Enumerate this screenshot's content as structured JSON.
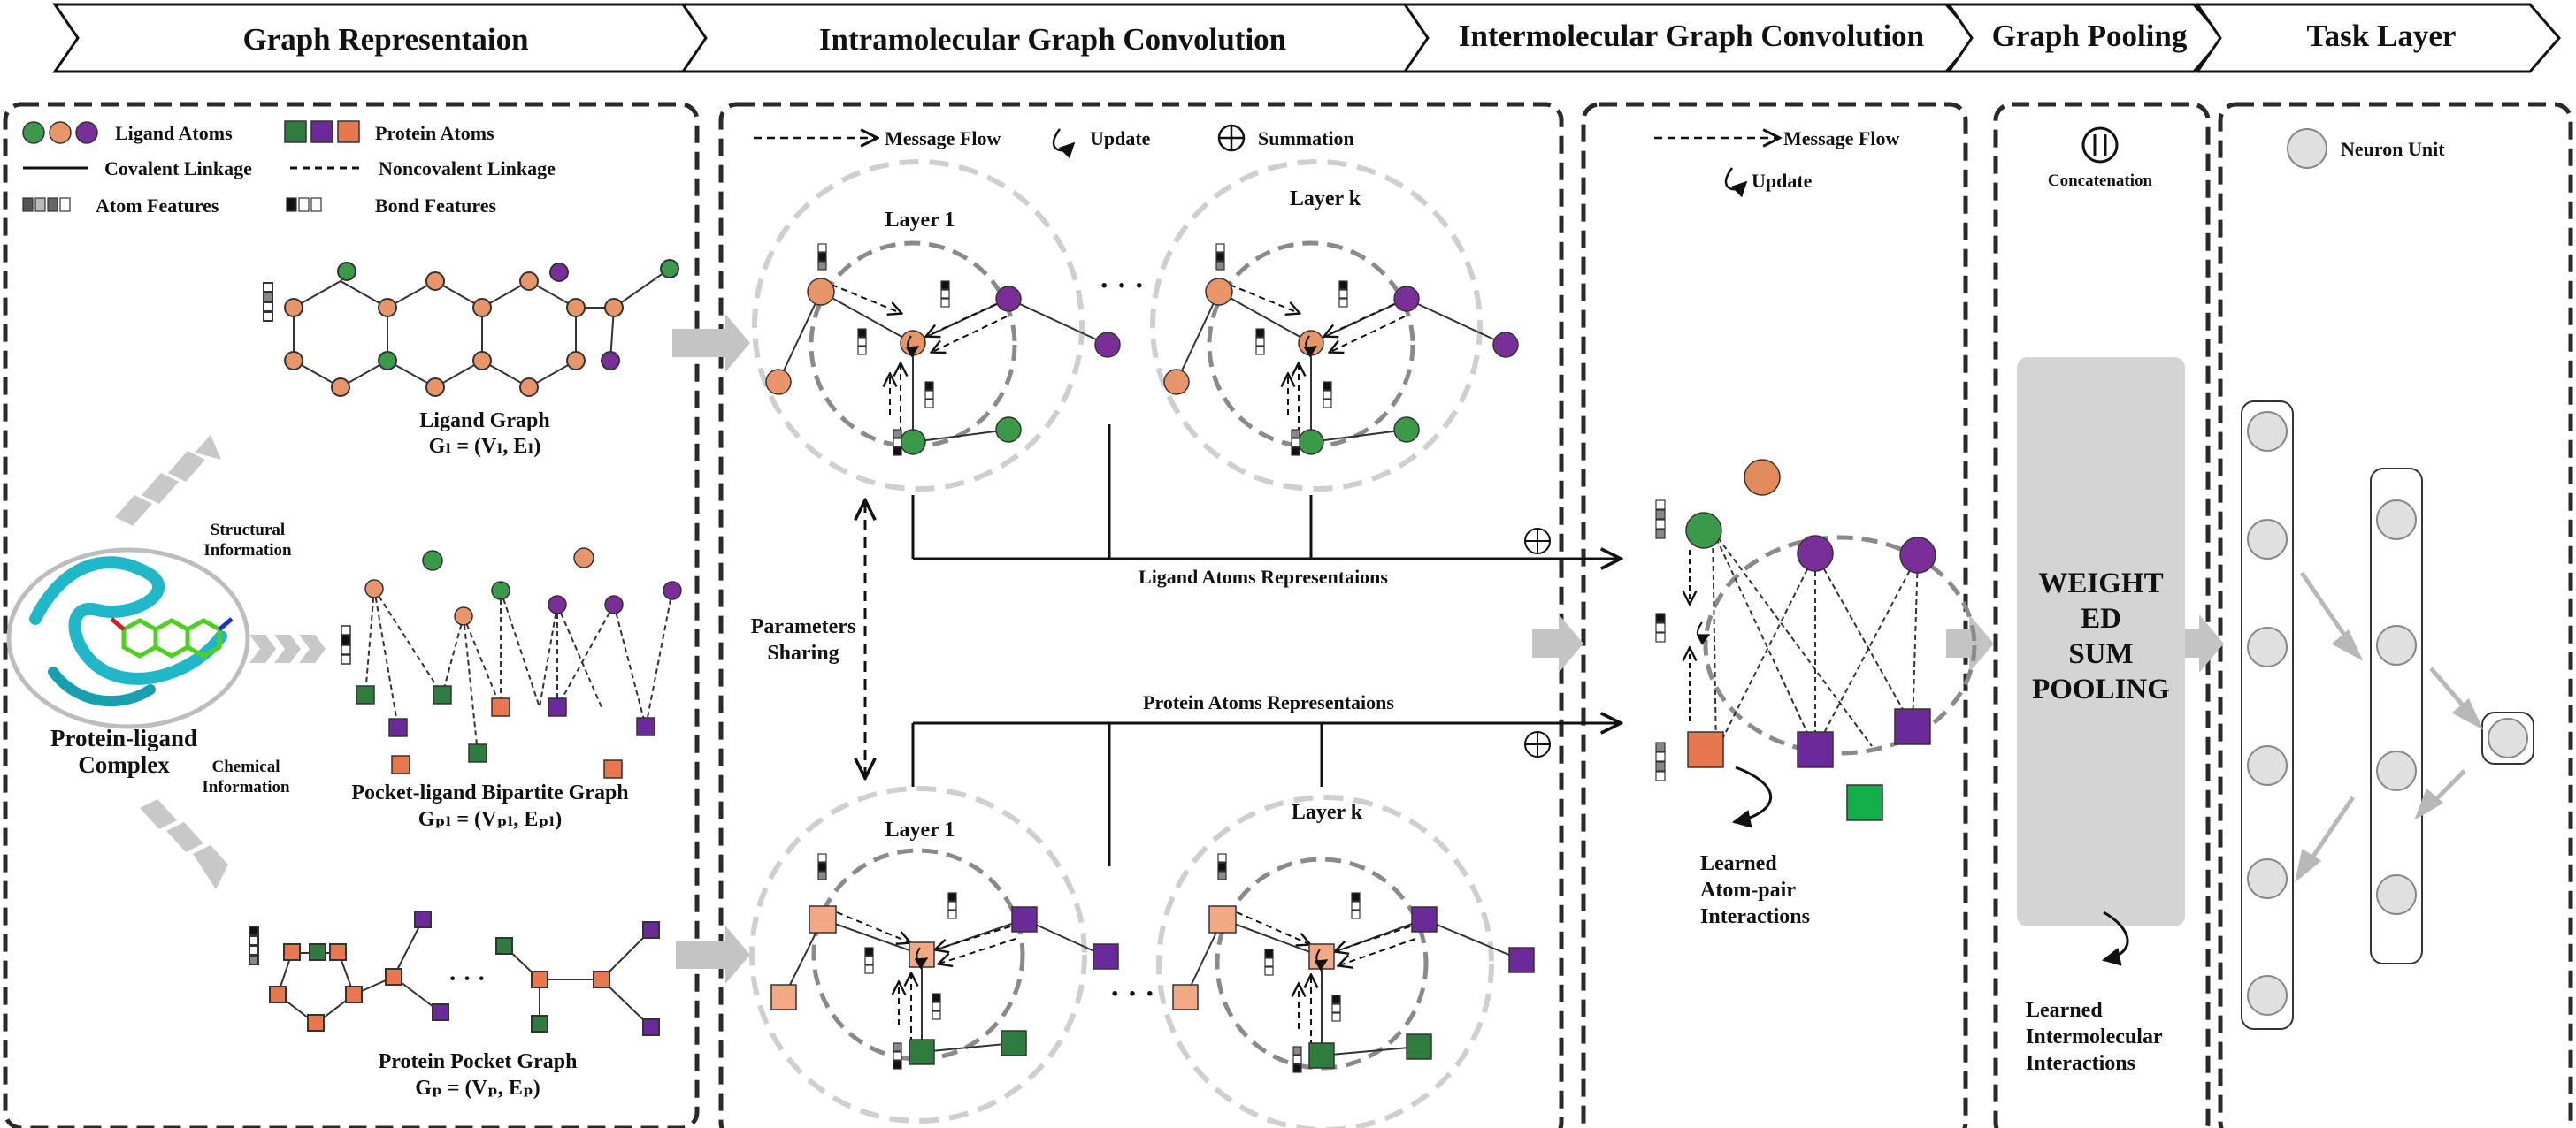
{
  "stages": [
    {
      "label": "Graph Representaion"
    },
    {
      "label": "Intramolecular Graph Convolution"
    },
    {
      "label": "Intermolecular Graph Convolution"
    },
    {
      "label": "Graph Pooling"
    },
    {
      "label": "Task Layer"
    }
  ],
  "legend": {
    "ligand_atoms": "Ligand Atoms",
    "protein_atoms": "Protein Atoms",
    "covalent": "Covalent Linkage",
    "noncovalent": "Noncovalent Linkage",
    "atom_features": "Atom Features",
    "bond_features": "Bond Features",
    "message_flow": "Message  Flow",
    "update": "Update",
    "summation": "Summation",
    "concatenation": "Concatenation",
    "neuron_unit": "Neuron Unit"
  },
  "graphs": {
    "ligand_title": "Ligand Graph",
    "ligand_formula": "Gₗ = (Vₗ, Eₗ)",
    "bipartite_title": "Pocket-ligand Bipartite Graph",
    "bipartite_formula": "Gₚₗ = (Vₚₗ, Eₚₗ)",
    "pocket_title": "Protein Pocket Graph",
    "pocket_formula": "Gₚ = (Vₚ, Eₚ)",
    "complex_line1": "Protein-ligand",
    "complex_line2": "Complex",
    "structural_line1": "Structural",
    "structural_line2": "Information",
    "chemical_line1": "Chemical",
    "chemical_line2": "Information",
    "ellipsis": "· · ·"
  },
  "convolution": {
    "layer1": "Layer 1",
    "layerk": "Layer k",
    "params_line1": "Parameters",
    "params_line2": "Sharing",
    "ligand_repr": "Ligand Atoms Representaions",
    "protein_repr": "Protein Atoms Representaions",
    "dots": "· · ·"
  },
  "intermolecular": {
    "learned_line1": "Learned",
    "learned_line2": "Atom-pair",
    "learned_line3": "Interactions"
  },
  "pooling": {
    "line1": "WEIGHT",
    "line2": "ED",
    "line3": "SUM",
    "line4": "POOLING",
    "learned_line1": "Learned",
    "learned_line2": "Intermolecular",
    "learned_line3": "Interactions"
  },
  "colors": {
    "ligand_green": "#3a9a4a",
    "ligand_orange": "#e8956a",
    "ligand_purple": "#7a2e9a",
    "protein_green": "#2e7d3e",
    "protein_purple": "#6a2a9a",
    "protein_orange": "#e8764e",
    "bright_green": "#12b04a",
    "pool_gray": "#d4d4d4",
    "arrow_gray": "#b8b8b8"
  }
}
